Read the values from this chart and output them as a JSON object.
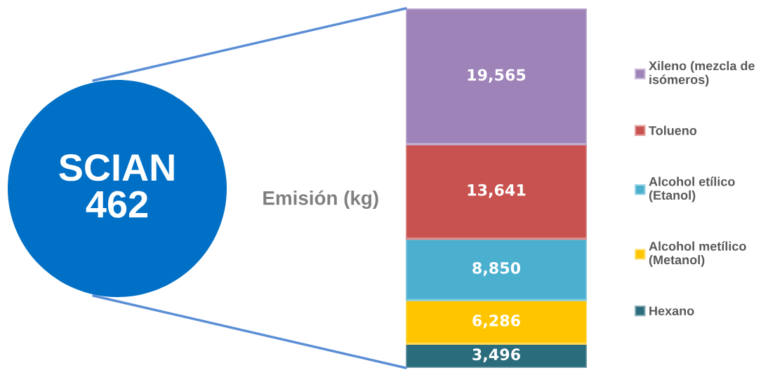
{
  "chart_data": {
    "type": "bar",
    "stacked": true,
    "categories": [
      null
    ],
    "ylabel": "Emisión (kg)",
    "annotations": [
      "SCIAN\n462"
    ],
    "series": [
      {
        "name": "Hexano",
        "color": "#2a6b7c",
        "values": [
          3496
        ],
        "value_labels": [
          "3,496"
        ]
      },
      {
        "name": "Alcohol metílico\n(Metanol)",
        "color": "#ffc600",
        "values": [
          6286
        ],
        "value_labels": [
          "6,286"
        ]
      },
      {
        "name": "Alcohol etílico\n(Etanol)",
        "color": "#4bb0d0",
        "values": [
          8850
        ],
        "value_labels": [
          "8,850"
        ]
      },
      {
        "name": "Tolueno",
        "color": "#c8524f",
        "values": [
          13641
        ],
        "value_labels": [
          "13,641"
        ]
      },
      {
        "name": "Xileno (mezcla de\nisómeros)",
        "color": "#9e83b9",
        "values": [
          19565
        ],
        "value_labels": [
          "19,565"
        ]
      }
    ],
    "legend": "right",
    "tick_labels": false
  }
}
